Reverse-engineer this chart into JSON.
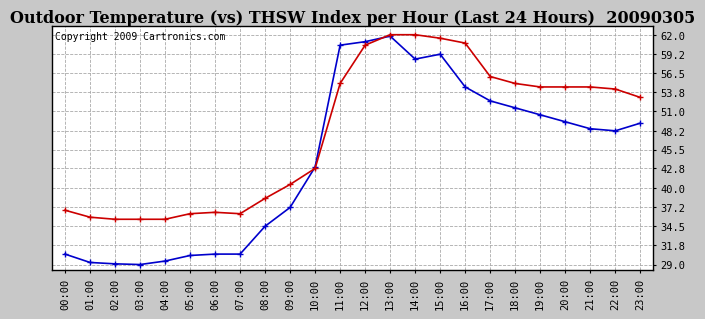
{
  "title": "Outdoor Temperature (vs) THSW Index per Hour (Last 24 Hours)  20090305",
  "copyright": "Copyright 2009 Cartronics.com",
  "hours": [
    "00:00",
    "01:00",
    "02:00",
    "03:00",
    "04:00",
    "05:00",
    "06:00",
    "07:00",
    "08:00",
    "09:00",
    "10:00",
    "11:00",
    "12:00",
    "13:00",
    "14:00",
    "15:00",
    "16:00",
    "17:00",
    "18:00",
    "19:00",
    "20:00",
    "21:00",
    "22:00",
    "23:00"
  ],
  "temp": [
    30.5,
    29.3,
    29.1,
    29.0,
    29.5,
    30.3,
    30.5,
    30.5,
    34.5,
    37.2,
    43.0,
    60.5,
    61.0,
    61.8,
    58.5,
    59.2,
    54.5,
    52.5,
    51.5,
    50.5,
    49.5,
    48.5,
    48.2,
    49.3
  ],
  "thsw": [
    36.8,
    35.8,
    35.5,
    35.5,
    35.5,
    36.3,
    36.5,
    36.3,
    38.5,
    40.5,
    42.8,
    55.0,
    60.5,
    62.0,
    62.0,
    61.5,
    60.8,
    56.0,
    55.0,
    54.5,
    54.5,
    54.5,
    54.2,
    53.0
  ],
  "temp_color": "#0000cc",
  "thsw_color": "#cc0000",
  "bg_color": "#c8c8c8",
  "plot_bg_color": "#ffffff",
  "grid_color": "#aaaaaa",
  "y_ticks": [
    29.0,
    31.8,
    34.5,
    37.2,
    40.0,
    42.8,
    45.5,
    48.2,
    51.0,
    53.8,
    56.5,
    59.2,
    62.0
  ],
  "ylim": [
    28.2,
    63.2
  ],
  "title_fontsize": 11.5,
  "tick_fontsize": 7.5,
  "copyright_fontsize": 7.0,
  "marker": "+",
  "marker_size": 4,
  "line_width": 1.2
}
